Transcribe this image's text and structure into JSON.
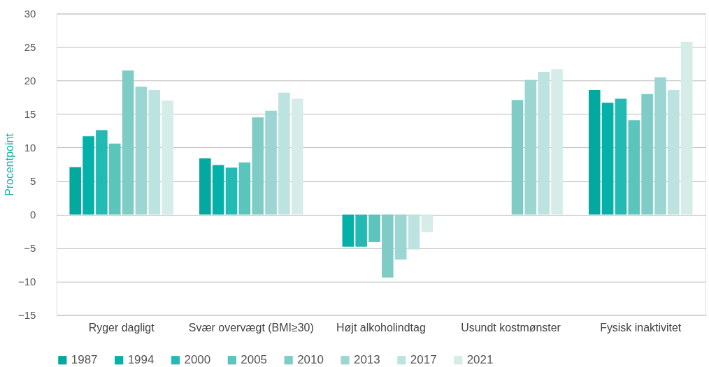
{
  "chart_data": {
    "type": "bar",
    "ylabel": "Procentpoint",
    "categories": [
      "Ryger dagligt",
      "Svær overvægt (BMI≥30)",
      "Højt alkoholindtag",
      "Usundt kostmønster",
      "Fysisk inaktivitet"
    ],
    "series": [
      {
        "name": "1987",
        "color": "#03a89e",
        "values": [
          7.1,
          8.4,
          null,
          null,
          18.6
        ]
      },
      {
        "name": "1994",
        "color": "#03b1a8",
        "values": [
          11.7,
          7.4,
          -4.8,
          null,
          16.7
        ]
      },
      {
        "name": "2000",
        "color": "#22bab3",
        "values": [
          12.6,
          7.0,
          -4.8,
          null,
          17.3
        ]
      },
      {
        "name": "2005",
        "color": "#5bc4bb",
        "values": [
          10.6,
          7.8,
          -4.1,
          null,
          14.1
        ]
      },
      {
        "name": "2010",
        "color": "#7fccc6",
        "values": [
          21.5,
          14.5,
          -9.4,
          17.1,
          18.0
        ]
      },
      {
        "name": "2013",
        "color": "#9bd6d2",
        "values": [
          19.1,
          15.5,
          -6.7,
          20.1,
          20.5
        ]
      },
      {
        "name": "2017",
        "color": "#bde3e0",
        "values": [
          18.6,
          18.2,
          -5.2,
          21.3,
          18.6
        ]
      },
      {
        "name": "2021",
        "color": "#d6ece9",
        "values": [
          17.0,
          17.3,
          -2.6,
          21.7,
          25.8
        ]
      }
    ],
    "ylim": [
      -15,
      30
    ],
    "yticks": [
      -15,
      -10,
      -5,
      0,
      5,
      10,
      15,
      20,
      25,
      30
    ],
    "grid": "y",
    "legend": "bottom"
  }
}
